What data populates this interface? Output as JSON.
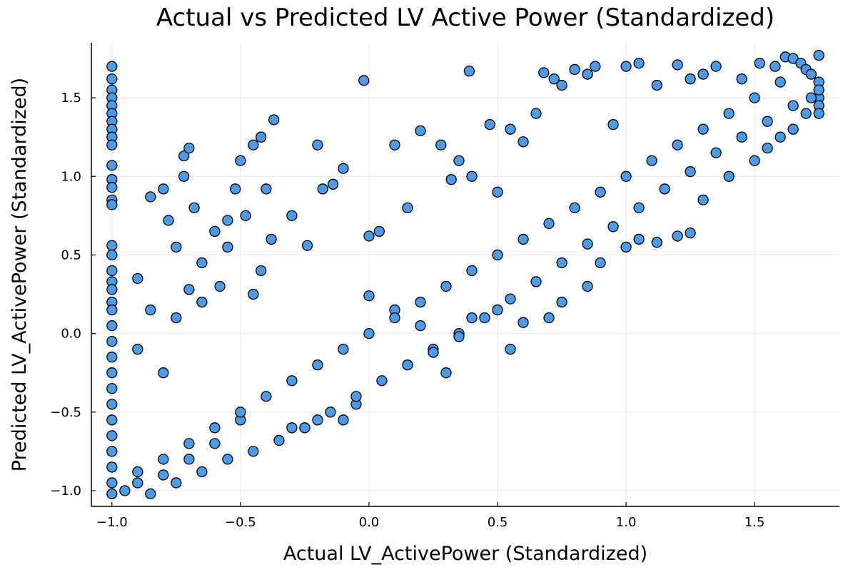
{
  "chart_data": {
    "type": "scatter",
    "title": "Actual vs Predicted LV Active Power (Standardized)",
    "xlabel": "Actual LV_ActivePower (Standardized)",
    "ylabel": "Predicted LV_ActivePower (Standardized)",
    "xlim": [
      -1.08,
      1.83
    ],
    "ylim": [
      -1.1,
      1.85
    ],
    "x_ticks": [
      -1.0,
      -0.5,
      0.0,
      0.5,
      1.0,
      1.5
    ],
    "x_tick_labels": [
      "−1.0",
      "−0.5",
      "0.0",
      "0.5",
      "1.0",
      "1.5"
    ],
    "y_ticks": [
      -1.0,
      -0.5,
      0.0,
      0.5,
      1.0,
      1.5
    ],
    "y_tick_labels": [
      "−1.0",
      "−0.5",
      "0.0",
      "0.5",
      "1.0",
      "1.5"
    ],
    "grid": true,
    "legend": "none",
    "marker_color": "#4d9be6",
    "marker_edge_color": "#000000",
    "points": [
      [
        -1.0,
        1.7
      ],
      [
        -1.0,
        1.62
      ],
      [
        -1.0,
        1.55
      ],
      [
        -1.0,
        1.5
      ],
      [
        -1.0,
        1.45
      ],
      [
        -1.0,
        1.4
      ],
      [
        -1.0,
        1.35
      ],
      [
        -1.0,
        1.3
      ],
      [
        -1.0,
        1.25
      ],
      [
        -1.0,
        1.2
      ],
      [
        -1.0,
        1.07
      ],
      [
        -1.0,
        0.98
      ],
      [
        -1.0,
        0.93
      ],
      [
        -1.0,
        0.85
      ],
      [
        -1.0,
        0.82
      ],
      [
        -1.0,
        0.56
      ],
      [
        -1.0,
        0.5
      ],
      [
        -1.0,
        0.4
      ],
      [
        -1.0,
        0.33
      ],
      [
        -1.0,
        0.28
      ],
      [
        -1.0,
        0.2
      ],
      [
        -1.0,
        0.15
      ],
      [
        -1.0,
        0.05
      ],
      [
        -1.0,
        -0.05
      ],
      [
        -1.0,
        -0.15
      ],
      [
        -1.0,
        -0.25
      ],
      [
        -1.0,
        -0.35
      ],
      [
        -1.0,
        -0.45
      ],
      [
        -1.0,
        -0.55
      ],
      [
        -1.0,
        -0.65
      ],
      [
        -1.0,
        -0.75
      ],
      [
        -1.0,
        -0.85
      ],
      [
        -1.0,
        -0.95
      ],
      [
        -1.0,
        -1.02
      ],
      [
        -0.9,
        0.35
      ],
      [
        -0.85,
        0.87
      ],
      [
        -0.8,
        0.92
      ],
      [
        -0.78,
        0.72
      ],
      [
        -0.75,
        0.55
      ],
      [
        -0.72,
        1.13
      ],
      [
        -0.7,
        1.18
      ],
      [
        -0.72,
        1.0
      ],
      [
        -0.68,
        0.8
      ],
      [
        -0.65,
        0.45
      ],
      [
        -0.6,
        0.65
      ],
      [
        -0.58,
        0.3
      ],
      [
        -0.55,
        0.72
      ],
      [
        -0.52,
        0.92
      ],
      [
        -0.5,
        1.1
      ],
      [
        -0.48,
        0.75
      ],
      [
        -0.45,
        1.2
      ],
      [
        -0.42,
        1.25
      ],
      [
        -0.4,
        0.92
      ],
      [
        -0.37,
        1.36
      ],
      [
        -0.38,
        0.6
      ],
      [
        -0.42,
        0.4
      ],
      [
        -0.45,
        0.25
      ],
      [
        -0.55,
        0.55
      ],
      [
        -0.65,
        0.2
      ],
      [
        -0.7,
        0.28
      ],
      [
        -0.75,
        0.1
      ],
      [
        -0.8,
        -0.25
      ],
      [
        -0.85,
        0.15
      ],
      [
        -0.9,
        -0.1
      ],
      [
        -0.3,
        0.75
      ],
      [
        -0.24,
        0.56
      ],
      [
        -0.2,
        1.2
      ],
      [
        -0.18,
        0.92
      ],
      [
        -0.14,
        0.95
      ],
      [
        -0.1,
        1.05
      ],
      [
        -0.02,
        1.61
      ],
      [
        0.0,
        0.62
      ],
      [
        0.04,
        0.65
      ],
      [
        0.1,
        1.2
      ],
      [
        0.15,
        0.8
      ],
      [
        0.2,
        1.29
      ],
      [
        0.28,
        1.2
      ],
      [
        0.32,
        0.98
      ],
      [
        0.35,
        1.1
      ],
      [
        0.39,
        1.67
      ],
      [
        0.4,
        1.0
      ],
      [
        0.47,
        1.33
      ],
      [
        0.5,
        0.9
      ],
      [
        0.55,
        1.3
      ],
      [
        0.6,
        1.22
      ],
      [
        0.65,
        1.4
      ],
      [
        0.68,
        1.66
      ],
      [
        0.72,
        1.62
      ],
      [
        0.75,
        1.58
      ],
      [
        0.8,
        1.68
      ],
      [
        0.85,
        1.65
      ],
      [
        0.88,
        1.7
      ],
      [
        0.95,
        1.33
      ],
      [
        1.0,
        1.7
      ],
      [
        1.05,
        1.72
      ],
      [
        1.12,
        1.58
      ],
      [
        1.2,
        1.71
      ],
      [
        1.25,
        1.62
      ],
      [
        1.3,
        1.65
      ],
      [
        1.35,
        1.7
      ],
      [
        1.45,
        1.62
      ],
      [
        1.52,
        1.72
      ],
      [
        1.58,
        1.7
      ],
      [
        1.62,
        1.76
      ],
      [
        1.65,
        1.75
      ],
      [
        1.68,
        1.72
      ],
      [
        1.7,
        1.68
      ],
      [
        1.72,
        1.65
      ],
      [
        1.75,
        1.77
      ],
      [
        1.75,
        1.6
      ],
      [
        1.75,
        1.5
      ],
      [
        1.75,
        1.45
      ],
      [
        1.75,
        1.4
      ],
      [
        1.75,
        1.55
      ],
      [
        0.0,
        0.24
      ],
      [
        0.1,
        0.15
      ],
      [
        0.2,
        0.05
      ],
      [
        0.25,
        -0.1
      ],
      [
        0.3,
        -0.25
      ],
      [
        0.35,
        0.0
      ],
      [
        0.4,
        0.1
      ],
      [
        0.5,
        0.15
      ],
      [
        0.55,
        -0.1
      ],
      [
        0.6,
        0.07
      ],
      [
        0.7,
        0.1
      ],
      [
        0.75,
        0.2
      ],
      [
        0.85,
        0.3
      ],
      [
        0.9,
        0.45
      ],
      [
        1.0,
        0.55
      ],
      [
        1.05,
        0.6
      ],
      [
        1.12,
        0.58
      ],
      [
        1.2,
        0.62
      ],
      [
        1.25,
        0.64
      ],
      [
        1.3,
        0.85
      ],
      [
        1.4,
        1.0
      ],
      [
        1.5,
        1.1
      ],
      [
        1.55,
        1.18
      ],
      [
        1.6,
        1.25
      ],
      [
        1.65,
        1.3
      ],
      [
        1.7,
        1.4
      ],
      [
        -0.3,
        -0.6
      ],
      [
        -0.2,
        -0.55
      ],
      [
        -0.1,
        -0.55
      ],
      [
        -0.05,
        -0.45
      ],
      [
        -0.5,
        -0.55
      ],
      [
        -0.6,
        -0.7
      ],
      [
        -0.7,
        -0.8
      ],
      [
        -0.8,
        -0.9
      ],
      [
        -0.9,
        -0.95
      ],
      [
        -0.95,
        -1.0
      ],
      [
        -0.85,
        -1.02
      ],
      [
        -0.75,
        -0.95
      ],
      [
        -0.65,
        -0.88
      ],
      [
        -0.55,
        -0.8
      ],
      [
        -0.45,
        -0.75
      ],
      [
        -0.35,
        -0.68
      ],
      [
        -0.25,
        -0.6
      ],
      [
        -0.15,
        -0.5
      ],
      [
        -0.05,
        -0.4
      ],
      [
        0.05,
        -0.3
      ],
      [
        0.15,
        -0.2
      ],
      [
        0.25,
        -0.12
      ],
      [
        0.35,
        -0.02
      ],
      [
        0.45,
        0.1
      ],
      [
        0.55,
        0.22
      ],
      [
        0.65,
        0.33
      ],
      [
        0.75,
        0.45
      ],
      [
        0.85,
        0.57
      ],
      [
        0.95,
        0.68
      ],
      [
        1.05,
        0.8
      ],
      [
        1.15,
        0.92
      ],
      [
        1.25,
        1.03
      ],
      [
        1.35,
        1.15
      ],
      [
        1.45,
        1.25
      ],
      [
        1.55,
        1.35
      ],
      [
        1.65,
        1.45
      ],
      [
        1.72,
        1.5
      ],
      [
        1.6,
        1.6
      ],
      [
        1.5,
        1.5
      ],
      [
        1.4,
        1.4
      ],
      [
        1.3,
        1.3
      ],
      [
        1.2,
        1.2
      ],
      [
        1.1,
        1.1
      ],
      [
        1.0,
        1.0
      ],
      [
        0.9,
        0.9
      ],
      [
        0.8,
        0.8
      ],
      [
        0.7,
        0.7
      ],
      [
        0.6,
        0.6
      ],
      [
        0.5,
        0.5
      ],
      [
        0.4,
        0.4
      ],
      [
        0.3,
        0.3
      ],
      [
        0.2,
        0.2
      ],
      [
        0.1,
        0.1
      ],
      [
        0.0,
        0.0
      ],
      [
        -0.1,
        -0.1
      ],
      [
        -0.2,
        -0.2
      ],
      [
        -0.3,
        -0.3
      ],
      [
        -0.4,
        -0.4
      ],
      [
        -0.5,
        -0.5
      ],
      [
        -0.6,
        -0.6
      ],
      [
        -0.7,
        -0.7
      ],
      [
        -0.8,
        -0.8
      ],
      [
        -0.9,
        -0.88
      ]
    ]
  }
}
